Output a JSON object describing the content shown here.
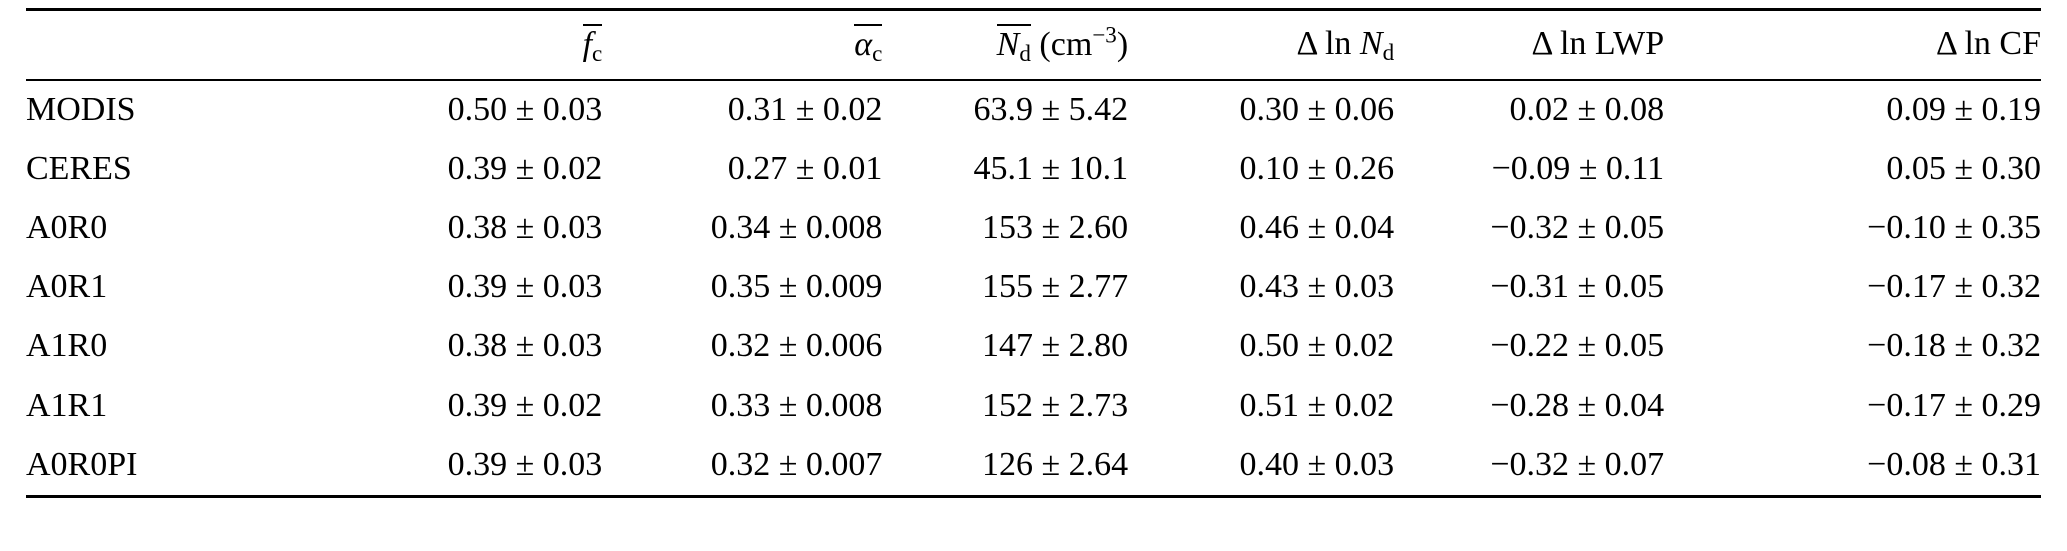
{
  "table": {
    "headers": {
      "row_label": "",
      "fc": {
        "symbol": "f",
        "sub": "c"
      },
      "ac": {
        "symbol": "α",
        "sub": "c"
      },
      "nd": {
        "symbol": "N",
        "sub": "d",
        "unit_open": " (cm",
        "unit_exp": "−3",
        "unit_close": ")"
      },
      "dln_nd": {
        "prefix": "Δ ln ",
        "symbol": "N",
        "sub": "d"
      },
      "dln_lwp": "Δ ln LWP",
      "dln_cf": "Δ ln CF"
    },
    "rows": [
      {
        "label": "MODIS",
        "cells": [
          "0.50 ± 0.03",
          "0.31 ± 0.02",
          "63.9 ± 5.42",
          "0.30 ± 0.06",
          "0.02 ± 0.08",
          "0.09 ± 0.19"
        ]
      },
      {
        "label": "CERES",
        "cells": [
          "0.39 ± 0.02",
          "0.27 ± 0.01",
          "45.1 ± 10.1",
          "0.10 ± 0.26",
          "−0.09 ± 0.11",
          "0.05 ± 0.30"
        ]
      },
      {
        "label": "A0R0",
        "cells": [
          "0.38 ± 0.03",
          "0.34 ± 0.008",
          "153 ± 2.60",
          "0.46 ± 0.04",
          "−0.32 ± 0.05",
          "−0.10 ± 0.35"
        ]
      },
      {
        "label": "A0R1",
        "cells": [
          "0.39 ± 0.03",
          "0.35 ± 0.009",
          "155 ± 2.77",
          "0.43 ± 0.03",
          "−0.31 ± 0.05",
          "−0.17 ± 0.32"
        ]
      },
      {
        "label": "A1R0",
        "cells": [
          "0.38 ± 0.03",
          "0.32 ± 0.006",
          "147 ± 2.80",
          "0.50 ± 0.02",
          "−0.22 ± 0.05",
          "−0.18 ± 0.32"
        ]
      },
      {
        "label": "A1R1",
        "cells": [
          "0.39 ± 0.02",
          "0.33 ± 0.008",
          "152 ± 2.73",
          "0.51 ± 0.02",
          "−0.28 ± 0.04",
          "−0.17 ± 0.29"
        ]
      },
      {
        "label": "A0R0PI",
        "cells": [
          "0.39 ± 0.03",
          "0.32 ± 0.007",
          "126 ± 2.64",
          "0.40 ± 0.03",
          "−0.32 ± 0.07",
          "−0.08 ± 0.31"
        ]
      }
    ]
  }
}
